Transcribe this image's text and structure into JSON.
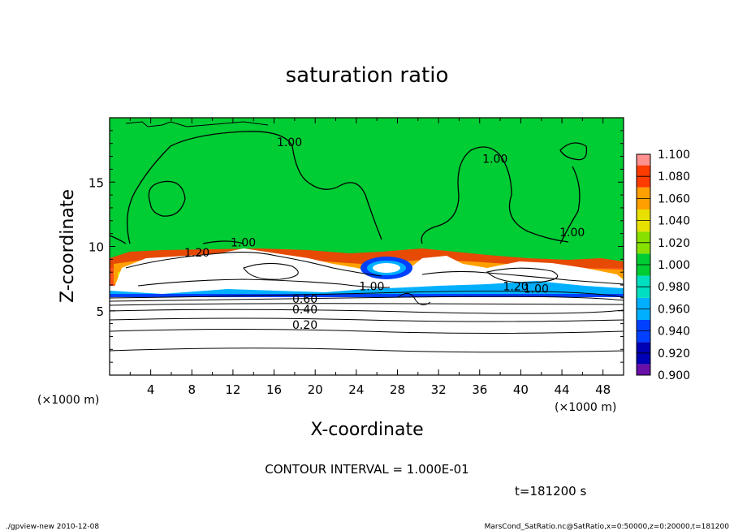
{
  "chart_data": {
    "type": "heatmap",
    "title": "saturation ratio",
    "xlabel": "X-coordinate",
    "ylabel": "Z-coordinate",
    "x_unit_left": "(×1000 m)",
    "x_unit_right": "(×1000 m)",
    "xlim": [
      0,
      50
    ],
    "ylim": [
      0,
      20
    ],
    "x_ticks": [
      4,
      8,
      12,
      16,
      20,
      24,
      28,
      32,
      36,
      40,
      44,
      48
    ],
    "y_ticks": [
      5,
      10,
      15
    ],
    "colorbar": {
      "levels": [
        0.9,
        0.92,
        0.94,
        0.96,
        0.98,
        1.0,
        1.02,
        1.04,
        1.06,
        1.08,
        1.1
      ],
      "labels": [
        "0.900",
        "0.920",
        "0.940",
        "0.960",
        "0.980",
        "1.000",
        "1.020",
        "1.040",
        "1.060",
        "1.080",
        "1.100"
      ],
      "colors": [
        "#6a0fa8",
        "#0000b4",
        "#0040ff",
        "#00b0ff",
        "#00e0c0",
        "#00cc33",
        "#88e000",
        "#e8e000",
        "#ffa000",
        "#ff3c00",
        "#ff9090"
      ]
    },
    "contour_labels": [
      {
        "text": "0.20",
        "x": 19,
        "z": 3.6
      },
      {
        "text": "0.40",
        "x": 19,
        "z": 4.8
      },
      {
        "text": "0.60",
        "x": 19,
        "z": 5.6
      },
      {
        "text": "1.00",
        "x": 17.5,
        "z": 17.8
      },
      {
        "text": "1.00",
        "x": 37.5,
        "z": 16.5
      },
      {
        "text": "1.00",
        "x": 45,
        "z": 10.8
      },
      {
        "text": "1.00",
        "x": 25.5,
        "z": 6.6
      },
      {
        "text": "1.20",
        "x": 39.5,
        "z": 6.6
      },
      {
        "text": "1.00",
        "x": 41.5,
        "z": 6.4
      },
      {
        "text": "1.20",
        "x": 8.5,
        "z": 9.2
      },
      {
        "text": "1.00",
        "x": 13,
        "z": 10
      }
    ],
    "grid": false,
    "legend": "right"
  },
  "annotations": {
    "contour_interval": "CONTOUR INTERVAL = 1.000E-01",
    "time": "t=181200 s",
    "footer_left": "./gpview-new  2010-12-08",
    "footer_right": "MarsCond_SatRatio.nc@SatRatio,x=0:50000,z=0:20000,t=181200"
  }
}
